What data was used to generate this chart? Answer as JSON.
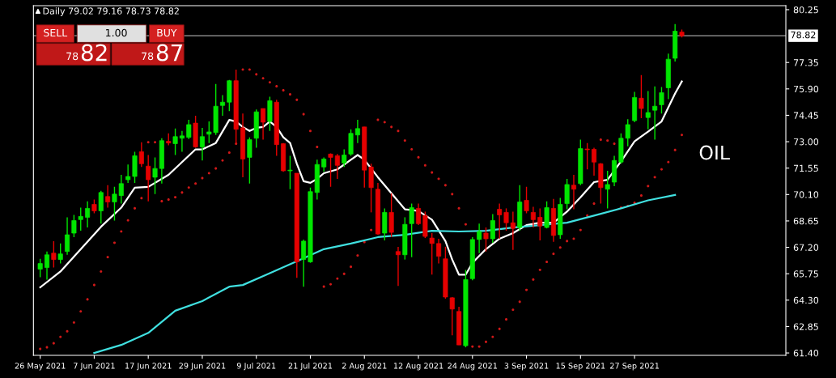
{
  "chart_data": {
    "type": "candlestick",
    "title": "Daily 79.02 79.16 78.73 78.82",
    "categories": [
      "26 May 2021",
      null,
      null,
      null,
      null,
      null,
      null,
      null,
      "7 Jun 2021",
      null,
      null,
      null,
      null,
      null,
      null,
      null,
      "17 Jun 2021",
      null,
      null,
      null,
      null,
      null,
      null,
      null,
      "29 Jun 2021",
      null,
      null,
      null,
      null,
      null,
      null,
      null,
      "9 Jul 2021",
      null,
      null,
      null,
      null,
      null,
      null,
      null,
      "21 Jul 2021",
      null,
      null,
      null,
      null,
      null,
      null,
      null,
      "2 Aug 2021",
      null,
      null,
      null,
      null,
      null,
      null,
      null,
      "12 Aug 2021",
      null,
      null,
      null,
      null,
      null,
      null,
      null,
      "24 Aug 2021",
      null,
      null,
      null,
      null,
      null,
      null,
      null,
      "3 Sep 2021",
      null,
      null,
      null,
      null,
      null,
      null,
      null,
      "15 Sep 2021",
      null,
      null,
      null,
      null,
      null,
      null,
      null,
      "27 Sep 2021",
      null,
      null,
      null,
      null,
      null,
      null,
      null
    ],
    "ohlc": [
      [
        66.0,
        66.57,
        65.56,
        66.31
      ],
      [
        66.09,
        66.97,
        65.43,
        66.79
      ],
      [
        66.88,
        67.54,
        66.09,
        66.53
      ],
      [
        66.53,
        67.41,
        66.31,
        66.84
      ],
      [
        66.97,
        68.85,
        66.79,
        67.89
      ],
      [
        67.98,
        68.98,
        67.76,
        68.67
      ],
      [
        68.72,
        69.38,
        68.11,
        68.9
      ],
      [
        68.85,
        69.73,
        68.29,
        69.34
      ],
      [
        69.56,
        69.82,
        69.07,
        69.2
      ],
      [
        69.2,
        70.3,
        68.5,
        70.21
      ],
      [
        69.99,
        70.61,
        69.38,
        69.69
      ],
      [
        69.69,
        70.52,
        68.67,
        70.12
      ],
      [
        70.04,
        71.18,
        69.6,
        70.7
      ],
      [
        70.91,
        71.75,
        70.74,
        71.09
      ],
      [
        71.09,
        72.45,
        70.74,
        72.23
      ],
      [
        72.45,
        72.97,
        71.61,
        71.79
      ],
      [
        71.66,
        72.27,
        69.73,
        70.91
      ],
      [
        71.05,
        72.14,
        70.12,
        71.53
      ],
      [
        71.53,
        73.19,
        70.7,
        73.06
      ],
      [
        73.02,
        73.46,
        72.8,
        72.93
      ],
      [
        72.89,
        73.72,
        72.27,
        73.28
      ],
      [
        73.19,
        73.59,
        72.45,
        73.32
      ],
      [
        73.24,
        74.2,
        73.15,
        73.94
      ],
      [
        74.02,
        74.42,
        72.67,
        72.71
      ],
      [
        72.71,
        73.76,
        71.97,
        73.28
      ],
      [
        73.41,
        74.11,
        72.93,
        73.54
      ],
      [
        73.5,
        76.17,
        73.37,
        74.95
      ],
      [
        74.99,
        75.56,
        74.42,
        75.17
      ],
      [
        75.17,
        76.39,
        74.68,
        76.35
      ],
      [
        76.35,
        76.96,
        72.93,
        73.68
      ],
      [
        73.76,
        74.55,
        71.05,
        72.05
      ],
      [
        72.14,
        73.24,
        70.7,
        73.11
      ],
      [
        73.19,
        74.77,
        72.67,
        74.64
      ],
      [
        74.82,
        74.82,
        73.11,
        74.07
      ],
      [
        74.11,
        75.47,
        73.59,
        75.25
      ],
      [
        75.17,
        75.3,
        72.23,
        72.84
      ],
      [
        72.89,
        72.93,
        71.35,
        71.4
      ],
      [
        71.4,
        72.23,
        70.39,
        71.44
      ],
      [
        71.27,
        71.27,
        65.52,
        66.4
      ],
      [
        66.53,
        67.63,
        65.04,
        67.54
      ],
      [
        66.4,
        70.48,
        66.35,
        70.26
      ],
      [
        70.21,
        72.01,
        69.82,
        71.75
      ],
      [
        71.61,
        72.14,
        71.35,
        72.05
      ],
      [
        72.32,
        72.36,
        70.52,
        72.14
      ],
      [
        72.23,
        72.32,
        70.96,
        71.7
      ],
      [
        71.83,
        72.58,
        71.61,
        72.27
      ],
      [
        72.32,
        73.68,
        72.23,
        73.46
      ],
      [
        73.37,
        74.2,
        72.93,
        73.72
      ],
      [
        73.81,
        73.81,
        70.48,
        71.44
      ],
      [
        71.61,
        71.79,
        69.12,
        70.48
      ],
      [
        70.39,
        70.74,
        67.89,
        67.93
      ],
      [
        67.98,
        69.34,
        67.58,
        69.12
      ],
      [
        69.12,
        70.17,
        67.76,
        68.02
      ],
      [
        66.97,
        67.23,
        65.08,
        66.79
      ],
      [
        66.79,
        68.85,
        66.53,
        68.46
      ],
      [
        68.5,
        69.6,
        66.66,
        69.38
      ],
      [
        69.34,
        69.6,
        68.42,
        68.5
      ],
      [
        68.94,
        69.16,
        67.71,
        67.8
      ],
      [
        67.71,
        67.98,
        65.7,
        67.41
      ],
      [
        67.41,
        67.67,
        66.31,
        66.71
      ],
      [
        66.57,
        67.23,
        64.38,
        64.47
      ],
      [
        64.43,
        64.47,
        62.37,
        63.81
      ],
      [
        63.68,
        63.94,
        61.84,
        61.84
      ],
      [
        61.8,
        65.96,
        61.71,
        65.43
      ],
      [
        65.48,
        67.76,
        65.39,
        67.63
      ],
      [
        67.63,
        68.5,
        66.88,
        68.07
      ],
      [
        67.98,
        68.29,
        66.97,
        67.67
      ],
      [
        67.67,
        69.03,
        67.45,
        68.67
      ],
      [
        69.29,
        69.6,
        67.67,
        68.98
      ],
      [
        69.12,
        69.34,
        68.11,
        68.55
      ],
      [
        68.55,
        69.16,
        67.06,
        68.24
      ],
      [
        68.29,
        70.61,
        68.11,
        69.69
      ],
      [
        69.78,
        70.52,
        69.07,
        69.2
      ],
      [
        69.12,
        69.42,
        68.29,
        68.72
      ],
      [
        68.85,
        69.34,
        67.58,
        68.37
      ],
      [
        68.29,
        69.73,
        68.24,
        69.38
      ],
      [
        69.34,
        69.86,
        67.5,
        67.85
      ],
      [
        67.89,
        69.91,
        67.67,
        69.56
      ],
      [
        69.6,
        70.96,
        69.29,
        70.65
      ],
      [
        70.61,
        71.18,
        69.29,
        70.39
      ],
      [
        70.7,
        73.11,
        70.61,
        72.62
      ],
      [
        72.6,
        72.93,
        71.48,
        72.56
      ],
      [
        72.58,
        72.67,
        71.14,
        71.88
      ],
      [
        71.79,
        71.83,
        69.6,
        70.48
      ],
      [
        70.39,
        71.4,
        69.34,
        70.65
      ],
      [
        70.78,
        72.23,
        70.56,
        71.97
      ],
      [
        71.88,
        73.46,
        71.79,
        73.19
      ],
      [
        73.19,
        74.24,
        72.75,
        73.94
      ],
      [
        74.16,
        75.74,
        74.07,
        75.43
      ],
      [
        75.39,
        76.66,
        74.29,
        74.82
      ],
      [
        74.33,
        75.78,
        73.68,
        74.6
      ],
      [
        74.73,
        76.04,
        73.11,
        74.95
      ],
      [
        75.03,
        76.0,
        74.55,
        75.69
      ],
      [
        75.96,
        77.84,
        75.34,
        77.53
      ],
      [
        77.58,
        79.46,
        77.4,
        79.07
      ],
      [
        79.02,
        79.16,
        78.73,
        78.82
      ]
    ],
    "colors": [
      "#00e600",
      "#00e600",
      "#e60000",
      "#00e600",
      "#00e600",
      "#00e600",
      "#00e600",
      "#00e600",
      "#e60000",
      "#00e600",
      "#e60000",
      "#00e600",
      "#00e600",
      "#00e600",
      "#00e600",
      "#e60000",
      "#e60000",
      "#00e600",
      "#00e600",
      "#e60000",
      "#00e600",
      "#00e600",
      "#00e600",
      "#e60000",
      "#00e600",
      "#00e600",
      "#00e600",
      "#00e600",
      "#00e600",
      "#e60000",
      "#e60000",
      "#00e600",
      "#00e600",
      "#e60000",
      "#00e600",
      "#e60000",
      "#e60000",
      "#00e600",
      "#e60000",
      "#00e600",
      "#00e600",
      "#00e600",
      "#00e600",
      "#e60000",
      "#e60000",
      "#00e600",
      "#00e600",
      "#00e600",
      "#e60000",
      "#e60000",
      "#e60000",
      "#00e600",
      "#e60000",
      "#e60000",
      "#00e600",
      "#00e600",
      "#e60000",
      "#e60000",
      "#e60000",
      "#e60000",
      "#e60000",
      "#e60000",
      "#e60000",
      "#00e600",
      "#00e600",
      "#00e600",
      "#e60000",
      "#00e600",
      "#e60000",
      "#e60000",
      "#e60000",
      "#00e600",
      "#e60000",
      "#e60000",
      "#e60000",
      "#00e600",
      "#e60000",
      "#00e600",
      "#00e600",
      "#e60000",
      "#00e600",
      "#e60000",
      "#e60000",
      "#e60000",
      "#00e600",
      "#00e600",
      "#00e600",
      "#00e600",
      "#00e600",
      "#e60000",
      "#00e600",
      "#00e600",
      "#00e600",
      "#00e600",
      "#00e600",
      "#e60000"
    ],
    "series": [
      {
        "type": "line",
        "color": "#ffffff",
        "values": [
          65.0,
          null,
          null,
          65.87,
          null,
          null,
          null,
          null,
          null,
          68.33,
          null,
          null,
          69.38,
          null,
          70.48,
          null,
          70.52,
          null,
          null,
          71.18,
          null,
          null,
          null,
          72.58,
          72.58,
          null,
          72.93,
          null,
          74.2,
          74.11,
          73.81,
          73.59,
          73.76,
          73.81,
          74.11,
          73.81,
          73.24,
          72.93,
          71.79,
          70.83,
          70.74,
          70.96,
          71.27,
          null,
          71.48,
          null,
          72.01,
          72.27,
          72.01,
          null,
          71.05,
          null,
          70.17,
          null,
          69.29,
          null,
          69.2,
          null,
          68.72,
          null,
          67.54,
          66.53,
          65.7,
          65.7,
          66.35,
          null,
          67.1,
          null,
          67.67,
          null,
          67.98,
          null,
          68.42,
          null,
          68.55,
          null,
          68.55,
          null,
          69.16,
          null,
          69.95,
          null,
          70.78,
          null,
          70.91,
          null,
          71.92,
          null,
          73.02,
          null,
          73.55,
          null,
          74.11,
          null,
          75.65,
          76.31
        ]
      },
      {
        "type": "line",
        "color": "#40e0e0",
        "values": [
          null,
          null,
          null,
          null,
          null,
          null,
          null,
          null,
          61.4,
          null,
          null,
          null,
          61.84,
          null,
          null,
          null,
          62.5,
          null,
          null,
          null,
          63.72,
          null,
          null,
          null,
          64.25,
          null,
          null,
          null,
          65.04,
          null,
          65.13,
          null,
          null,
          null,
          65.78,
          null,
          null,
          null,
          66.44,
          null,
          null,
          null,
          67.1,
          null,
          null,
          null,
          67.41,
          null,
          null,
          null,
          67.76,
          null,
          null,
          null,
          67.89,
          null,
          null,
          null,
          68.11,
          null,
          null,
          null,
          68.07,
          null,
          null,
          null,
          68.11,
          null,
          null,
          null,
          68.29,
          null,
          null,
          null,
          68.42,
          null,
          null,
          null,
          68.55,
          null,
          null,
          null,
          68.94,
          null,
          null,
          null,
          69.34,
          null,
          null,
          null,
          69.78,
          null,
          null,
          null,
          70.08,
          null
        ]
      },
      {
        "type": "scatter",
        "color": "#d01818",
        "marker": "circle",
        "values": [
          61.62,
          61.71,
          61.93,
          62.28,
          62.59,
          63.07,
          63.68,
          64.34,
          65.13,
          65.87,
          66.66,
          67.45,
          68.07,
          68.68,
          69.34,
          69.9,
          72.97,
          72.97,
          69.73,
          69.82,
          69.95,
          70.21,
          70.48,
          70.7,
          71.0,
          71.27,
          71.53,
          71.97,
          72.4,
          72.89,
          76.96,
          76.96,
          76.7,
          76.48,
          76.26,
          76.04,
          75.82,
          75.6,
          75.3,
          74.51,
          73.59,
          72.71,
          65.04,
          65.17,
          65.48,
          65.74,
          66.13,
          66.75,
          67.49,
          68.15,
          74.2,
          74.07,
          73.81,
          73.59,
          73.06,
          72.58,
          72.14,
          71.7,
          71.31,
          70.96,
          70.61,
          70.12,
          69.34,
          68.46,
          61.75,
          61.75,
          62.01,
          62.28,
          62.72,
          63.24,
          63.77,
          64.21,
          64.86,
          65.43,
          65.96,
          66.4,
          66.84,
          67.19,
          67.54,
          67.67,
          68.15,
          68.94,
          69.6,
          73.11,
          73.06,
          72.89,
          69.38,
          69.47,
          69.64,
          70.04,
          70.56,
          71.05,
          71.48,
          71.88,
          72.54,
          73.37
        ]
      }
    ],
    "ylim": [
      61.27,
      80.47
    ],
    "yticks": [
      {
        "value": 80.25,
        "label": "80.25"
      },
      {
        "value": 77.35,
        "label": "77.35"
      },
      {
        "value": 75.9,
        "label": "75.90"
      },
      {
        "value": 74.45,
        "label": "74.45"
      },
      {
        "value": 73.0,
        "label": "73.00"
      },
      {
        "value": 71.55,
        "label": "71.55"
      },
      {
        "value": 70.1,
        "label": "70.10"
      },
      {
        "value": 68.65,
        "label": "68.65"
      },
      {
        "value": 67.2,
        "label": "67.20"
      },
      {
        "value": 65.75,
        "label": "65.75"
      },
      {
        "value": 64.3,
        "label": "64.30"
      },
      {
        "value": 62.85,
        "label": "62.85"
      },
      {
        "value": 61.4,
        "label": "61.40"
      }
    ],
    "ref_lines": [
      {
        "axis": "y",
        "value": 78.82,
        "label": "78.82",
        "color": "#a0a0a0"
      }
    ],
    "annotations": [
      "SELL",
      "1.00",
      "BUY",
      "78",
      "82",
      "78",
      "87",
      "OIL"
    ],
    "grid": false
  }
}
